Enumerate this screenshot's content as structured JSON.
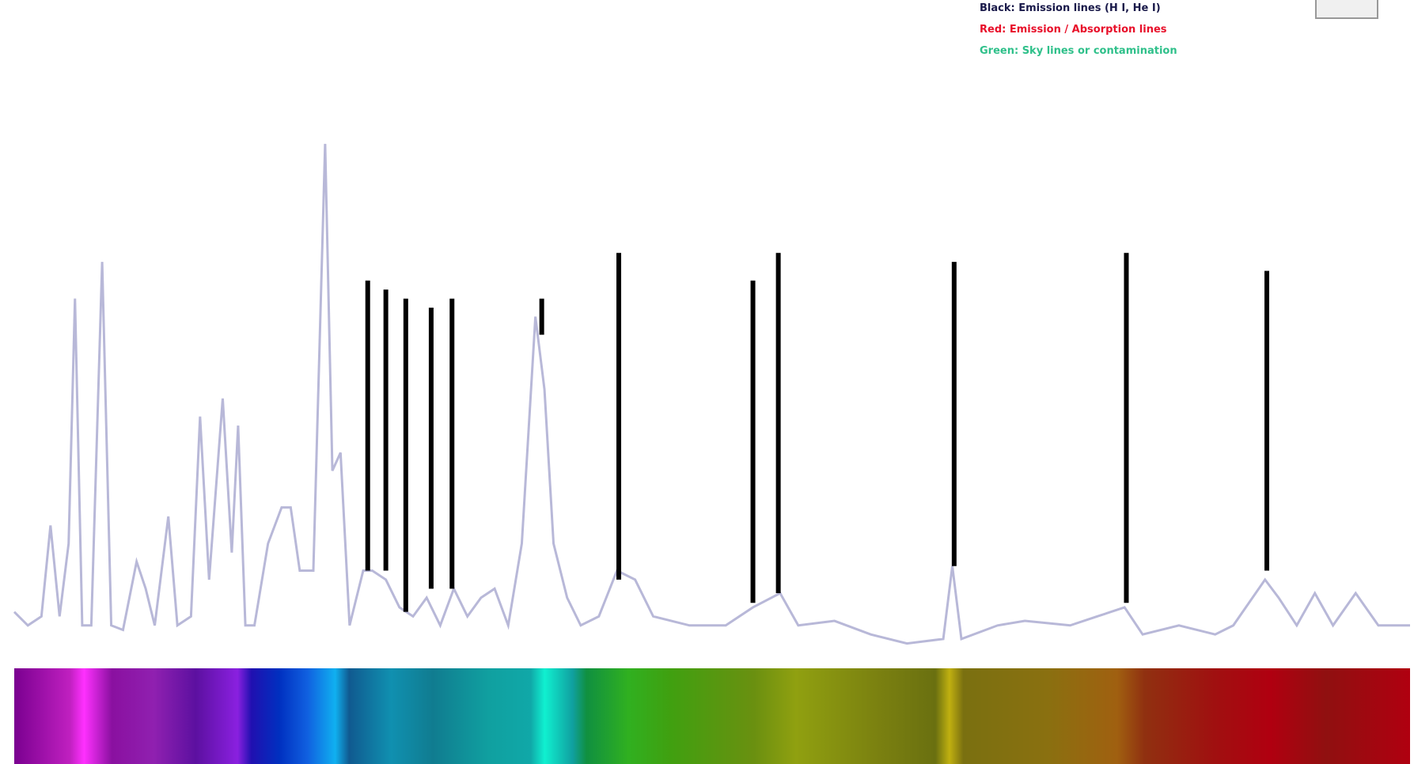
{
  "chart_data": {
    "type": "line",
    "legend": [
      {
        "text": "Black: Emission lines (H I, He I)",
        "color": "#1a1a4a"
      },
      {
        "text": "Red: Emission / Absorption lines",
        "color": "#e8102a"
      },
      {
        "text": "Green: Sky lines or contamination",
        "color": "#2fc08a"
      }
    ],
    "xlim": [
      15,
      1555
    ],
    "ylim": [
      0,
      100
    ],
    "series": [
      {
        "color": "#b8b8d8",
        "x": [
          15,
          30,
          45,
          55,
          65,
          75,
          82,
          90,
          100,
          112,
          122,
          135,
          150,
          160,
          170,
          185,
          195,
          210,
          220,
          230,
          245,
          255,
          262,
          270,
          280,
          295,
          310,
          320,
          330,
          345,
          358,
          366,
          375,
          385,
          400,
          410,
          425,
          440,
          455,
          470,
          485,
          500,
          515,
          530,
          545,
          560,
          575,
          590,
          600,
          610,
          625,
          640,
          660,
          680,
          700,
          720,
          760,
          800,
          830,
          860,
          880,
          920,
          960,
          1000,
          1040,
          1050,
          1060,
          1100,
          1130,
          1180,
          1210,
          1240,
          1260,
          1300,
          1340,
          1360,
          1395,
          1410,
          1430,
          1450,
          1470,
          1495,
          1520,
          1555
        ],
        "values": [
          6.3,
          4.2,
          5.6,
          19.7,
          5.6,
          16.9,
          54.9,
          4.2,
          4.2,
          60.6,
          4.2,
          3.5,
          14.1,
          9.9,
          4.2,
          21.1,
          4.2,
          5.6,
          36.6,
          11.3,
          39.4,
          15.5,
          35.2,
          4.2,
          4.2,
          16.9,
          22.5,
          22.5,
          12.7,
          12.7,
          78.9,
          28.2,
          31.0,
          4.2,
          12.7,
          12.7,
          11.3,
          7.0,
          5.6,
          8.5,
          4.2,
          9.9,
          5.6,
          8.5,
          9.9,
          4.2,
          16.9,
          52.1,
          40.8,
          16.9,
          8.5,
          4.2,
          5.6,
          12.7,
          11.3,
          5.6,
          4.2,
          4.2,
          7.0,
          9.2,
          4.2,
          4.9,
          2.8,
          1.4,
          2.1,
          13.4,
          2.1,
          4.2,
          4.9,
          4.2,
          5.6,
          7.0,
          2.8,
          4.2,
          2.8,
          4.2,
          11.3,
          8.5,
          4.2,
          9.2,
          4.2,
          9.2,
          4.2,
          4.2
        ]
      }
    ],
    "markers": {
      "color": "#000000",
      "x": [
        405,
        425,
        447,
        475,
        498,
        597,
        682,
        830,
        858,
        1052,
        1242,
        1397
      ],
      "top": [
        57.7,
        56.3,
        54.9,
        53.5,
        54.9,
        54.9,
        62.0,
        57.7,
        62.0,
        60.6,
        62.0,
        59.2
      ],
      "bottom": [
        12.7,
        12.7,
        6.3,
        9.9,
        9.9,
        49.3,
        11.3,
        7.7,
        9.2,
        13.4,
        7.7,
        12.7
      ]
    }
  }
}
